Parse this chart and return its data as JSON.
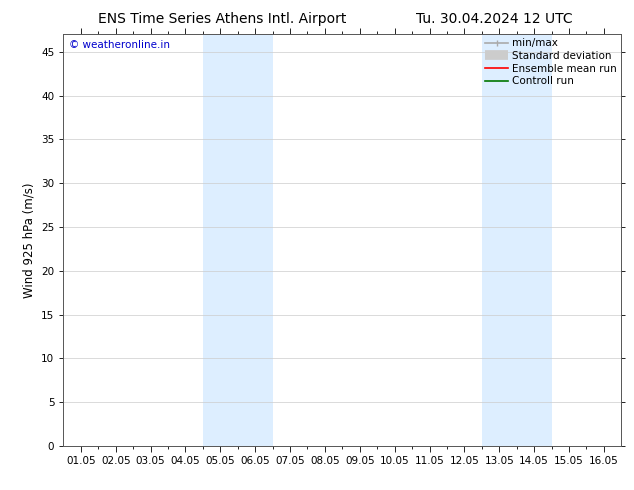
{
  "title_left": "ENS Time Series Athens Intl. Airport",
  "title_right": "Tu. 30.04.2024 12 UTC",
  "ylabel": "Wind 925 hPa (m/s)",
  "watermark": "© weatheronline.in",
  "watermark_color": "#0000cc",
  "xtick_labels": [
    "01.05",
    "02.05",
    "03.05",
    "04.05",
    "05.05",
    "06.05",
    "07.05",
    "08.05",
    "09.05",
    "10.05",
    "11.05",
    "12.05",
    "13.05",
    "14.05",
    "15.05",
    "16.05"
  ],
  "xtick_positions": [
    0,
    1,
    2,
    3,
    4,
    5,
    6,
    7,
    8,
    9,
    10,
    11,
    12,
    13,
    14,
    15
  ],
  "ylim": [
    0,
    47
  ],
  "yticks": [
    0,
    5,
    10,
    15,
    20,
    25,
    30,
    35,
    40,
    45
  ],
  "background_color": "#ffffff",
  "plot_bg_color": "#ffffff",
  "shade_bands": [
    {
      "xmin": 3.5,
      "xmax": 5.5,
      "color": "#ddeeff"
    },
    {
      "xmin": 11.5,
      "xmax": 13.5,
      "color": "#ddeeff"
    }
  ],
  "legend_items": [
    {
      "label": "min/max",
      "color": "#aaaaaa",
      "lw": 1.2,
      "style": "minmax"
    },
    {
      "label": "Standard deviation",
      "color": "#cccccc",
      "lw": 7,
      "style": "thick"
    },
    {
      "label": "Ensemble mean run",
      "color": "#ff0000",
      "lw": 1.2,
      "style": "solid"
    },
    {
      "label": "Controll run",
      "color": "#007700",
      "lw": 1.2,
      "style": "solid"
    }
  ],
  "title_fontsize": 10,
  "tick_label_fontsize": 7.5,
  "ylabel_fontsize": 8.5,
  "legend_fontsize": 7.5,
  "watermark_fontsize": 7.5,
  "grid_color": "#cccccc",
  "grid_lw": 0.5,
  "spine_color": "#555555"
}
